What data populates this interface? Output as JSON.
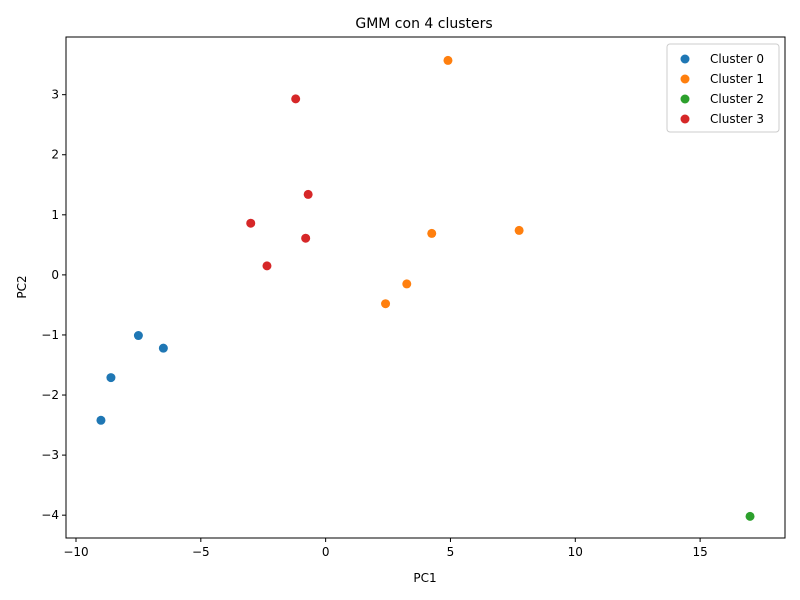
{
  "chart_data": {
    "type": "scatter",
    "title": "GMM con 4 clusters",
    "xlabel": "PC1",
    "ylabel": "PC2",
    "xlim": [
      -10.4,
      18.4
    ],
    "ylim": [
      -4.38,
      3.96
    ],
    "x_ticks": [
      -10,
      -5,
      0,
      5,
      10,
      15
    ],
    "y_ticks": [
      -4,
      -3,
      -2,
      -1,
      0,
      1,
      2,
      3
    ],
    "x_tick_labels": [
      "−10",
      "−5",
      "0",
      "5",
      "10",
      "15"
    ],
    "y_tick_labels": [
      "−4",
      "−3",
      "−2",
      "−1",
      "0",
      "1",
      "2",
      "3"
    ],
    "grid": false,
    "legend_position": "top-right",
    "series": [
      {
        "name": "Cluster 0",
        "color": "#1f77b4",
        "points": [
          [
            -9.0,
            -2.42
          ],
          [
            -8.6,
            -1.71
          ],
          [
            -7.5,
            -1.01
          ],
          [
            -6.5,
            -1.22
          ]
        ]
      },
      {
        "name": "Cluster 1",
        "color": "#ff7f0e",
        "points": [
          [
            4.9,
            3.57
          ],
          [
            4.25,
            0.69
          ],
          [
            7.75,
            0.74
          ],
          [
            3.25,
            -0.15
          ],
          [
            2.4,
            -0.48
          ]
        ]
      },
      {
        "name": "Cluster 2",
        "color": "#2ca02c",
        "points": [
          [
            17.0,
            -4.02
          ]
        ]
      },
      {
        "name": "Cluster 3",
        "color": "#d62728",
        "points": [
          [
            -1.2,
            2.93
          ],
          [
            -0.7,
            1.34
          ],
          [
            -3.0,
            0.86
          ],
          [
            -0.8,
            0.61
          ],
          [
            -2.35,
            0.15
          ]
        ]
      }
    ]
  }
}
